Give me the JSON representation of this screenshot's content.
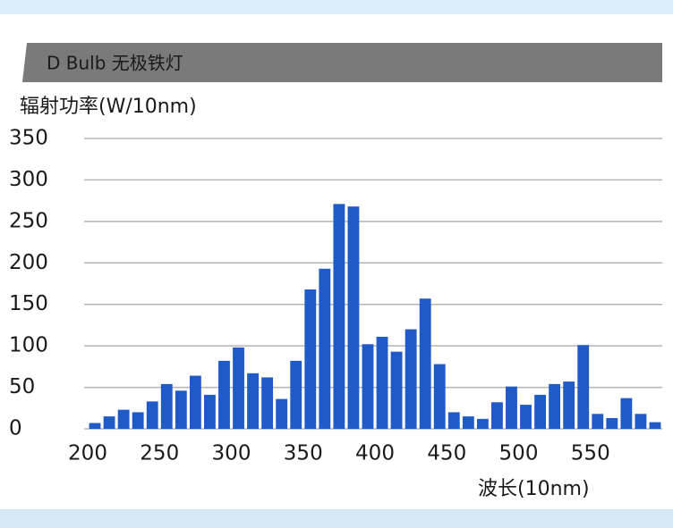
{
  "chart_data": {
    "type": "histogram",
    "title": "D Bulb 无极铁灯",
    "y_label": "辐射功率(W/10nm)",
    "x_label": "波长(10nm)",
    "bins": [
      200,
      210,
      220,
      230,
      240,
      250,
      260,
      270,
      280,
      290,
      300,
      310,
      320,
      330,
      340,
      350,
      360,
      370,
      380,
      390,
      400,
      410,
      420,
      430,
      440,
      450,
      460,
      470,
      480,
      490,
      500,
      510,
      520,
      530,
      540,
      550,
      560,
      570,
      580,
      590,
      600
    ],
    "values": [
      7,
      15,
      23,
      20,
      33,
      54,
      46,
      64,
      41,
      82,
      98,
      67,
      62,
      36,
      82,
      168,
      193,
      271,
      268,
      102,
      111,
      93,
      120,
      157,
      78,
      20,
      15,
      12,
      32,
      51,
      29,
      41,
      54,
      57,
      101,
      18,
      13,
      37,
      18,
      8
    ],
    "color": "#1f5ac6",
    "xlim": [
      200,
      600
    ],
    "xticks": [
      200,
      250,
      300,
      350,
      400,
      450,
      500,
      550
    ],
    "ylim": [
      0,
      350
    ],
    "yticks": [
      0,
      50,
      100,
      150,
      200,
      250,
      300,
      350
    ],
    "grid": true
  }
}
